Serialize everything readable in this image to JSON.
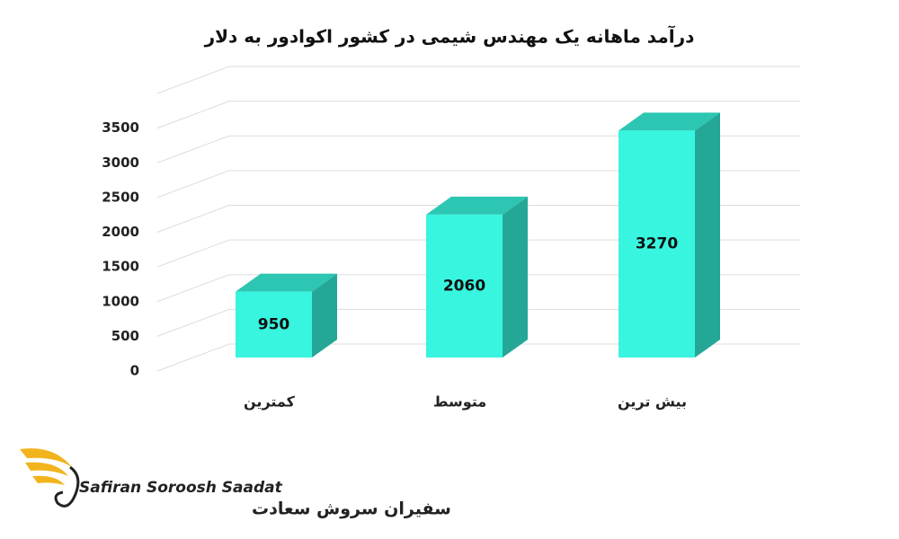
{
  "chart_data": {
    "type": "bar3d",
    "title": "درآمد ماهانه یک مهندس شیمی در کشور اکوادور به دلار",
    "categories": [
      "کمترین",
      "متوسط",
      "بیش ترین"
    ],
    "values": [
      950,
      2060,
      3270
    ],
    "color": "#38f5df",
    "side_color": "#25a797",
    "top_color": "#2cc6b2",
    "ylim": [
      0,
      4000
    ],
    "yticks": [
      0,
      500,
      1000,
      1500,
      2000,
      2500,
      3000,
      3500
    ],
    "grid": true
  },
  "logo": {
    "name": "Safiran Soroosh Saadat",
    "name_fa": "سفیران سروش سعادت"
  }
}
